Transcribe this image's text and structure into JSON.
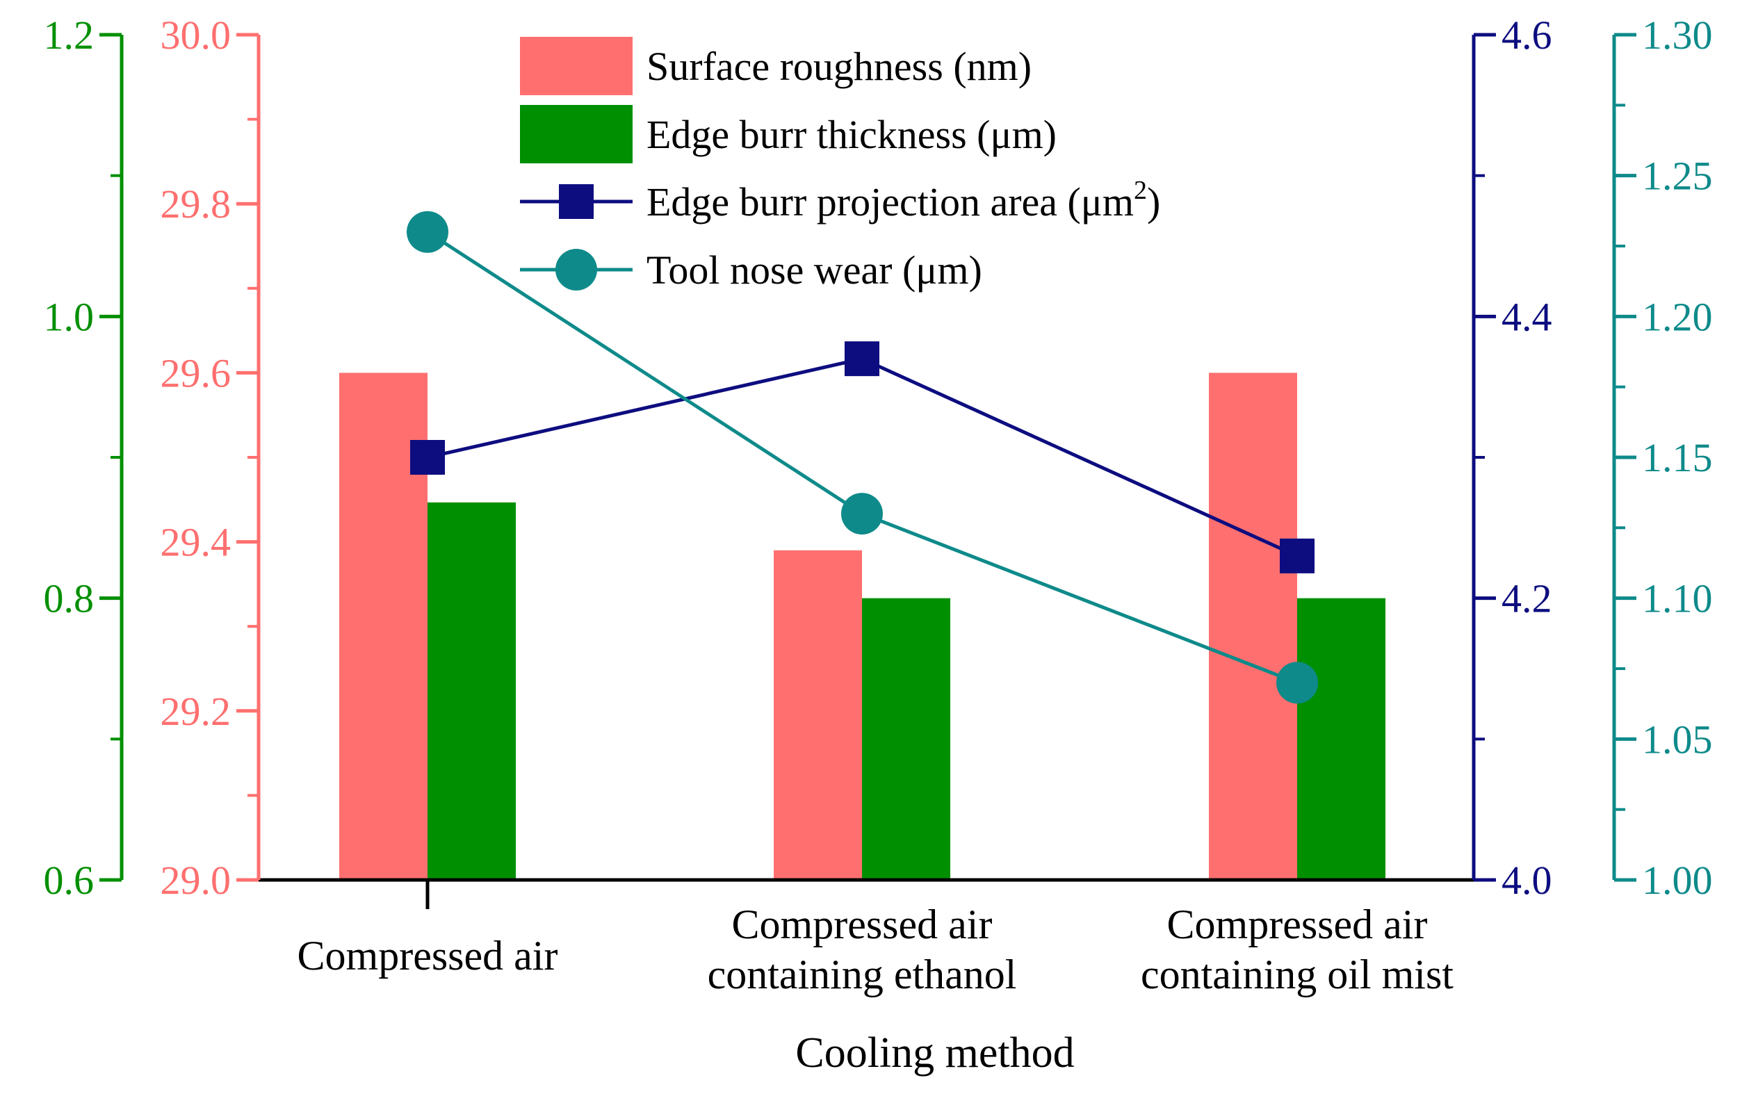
{
  "chart_data": {
    "type": "bar+line",
    "xlabel": "Cooling method",
    "categories": [
      [
        "Compressed air"
      ],
      [
        "Compressed air",
        "containing ethanol"
      ],
      [
        "Compressed air",
        "containing oil mist"
      ]
    ],
    "series": [
      {
        "name": "Surface roughness (nm)",
        "kind": "bar",
        "axis": "surface",
        "color": "#FF6F6F",
        "values": [
          29.6,
          29.39,
          29.6
        ]
      },
      {
        "name": "Edge burr thickness (μm)",
        "kind": "bar",
        "axis": "burr_thickness",
        "color": "#008F00",
        "values": [
          0.868,
          0.8,
          0.8
        ]
      },
      {
        "name": "Edge burr projection area (μm2)",
        "label_main": "Edge burr projection area (μm",
        "label_sup": "2",
        "label_end": ")",
        "kind": "line",
        "marker": "square",
        "axis": "projection_area",
        "color": "#0D0D80",
        "values": [
          4.3,
          4.37,
          4.23
        ]
      },
      {
        "name": "Tool nose wear (μm)",
        "kind": "line",
        "marker": "circle",
        "axis": "nose_wear",
        "color": "#0E8A8A",
        "values": [
          1.23,
          1.13,
          1.07
        ]
      }
    ],
    "axes": {
      "burr_thickness": {
        "side": "left-outer",
        "color": "#008F00",
        "ylim": [
          0.6,
          1.2
        ],
        "ticks": [
          "0.6",
          "0.8",
          "1.0",
          "1.2"
        ],
        "tick_values": [
          0.6,
          0.8,
          1.0,
          1.2
        ],
        "minor_step": 0.1
      },
      "surface": {
        "side": "left-inner",
        "color": "#FF6F6F",
        "ylim": [
          29.0,
          30.0
        ],
        "ticks": [
          "29.0",
          "29.2",
          "29.4",
          "29.6",
          "29.8",
          "30.0"
        ],
        "tick_values": [
          29.0,
          29.2,
          29.4,
          29.6,
          29.8,
          30.0
        ],
        "minor_step": 0.1
      },
      "projection_area": {
        "side": "right-inner",
        "color": "#0D0D80",
        "ylim": [
          4.0,
          4.6
        ],
        "ticks": [
          "4.0",
          "4.2",
          "4.4",
          "4.6"
        ],
        "tick_values": [
          4.0,
          4.2,
          4.4,
          4.6
        ],
        "minor_step": 0.1
      },
      "nose_wear": {
        "side": "right-outer",
        "color": "#0E8A8A",
        "ylim": [
          1.0,
          1.3
        ],
        "ticks": [
          "1.00",
          "1.05",
          "1.10",
          "1.15",
          "1.20",
          "1.25",
          "1.30"
        ],
        "tick_values": [
          1.0,
          1.05,
          1.1,
          1.15,
          1.2,
          1.25,
          1.3
        ],
        "minor_step": 0.025
      }
    },
    "legend_position": "top-center"
  }
}
